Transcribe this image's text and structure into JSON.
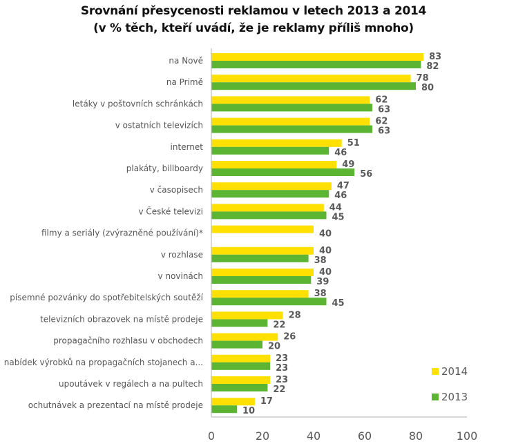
{
  "chart_data": {
    "type": "bar",
    "orientation": "horizontal",
    "title": "Srovnání přesycenosti reklamou v letech 2013 a 2014",
    "subtitle": "(v % těch, kteří uvádí, že je reklamy příliš mnoho)",
    "xlabel": "",
    "ylabel": "",
    "xlim": [
      0,
      100
    ],
    "xticks": [
      "0",
      "20",
      "40",
      "60",
      "80",
      "100"
    ],
    "grid": false,
    "legend_position": "bottom-right",
    "categories": [
      "na Nově",
      "na Primě",
      "letáky v poštovních  schránkách",
      "v ostatních televizích",
      "internet",
      "plakáty, billboardy",
      "v časopisech",
      "v České televizi",
      "filmy a seriály (zvýrazněné používání)*",
      "v rozhlase",
      "v novinách",
      "písemné  pozvánky do spotřebitelských soutěží",
      "televizních obrazovek na místě prodeje",
      "propagačního rozhlasu v obchodech",
      "nabídek výrobků na propagačních stojanech a...",
      "upoutávek v regálech a na pultech",
      "ochutnávek a prezentací na místě prodeje"
    ],
    "series": [
      {
        "name": "2014",
        "color": "#FFE000",
        "values": [
          83,
          78,
          62,
          62,
          51,
          49,
          47,
          44,
          40,
          40,
          40,
          38,
          28,
          26,
          23,
          23,
          17
        ]
      },
      {
        "name": "2013",
        "color": "#5BB432",
        "values": [
          82,
          80,
          63,
          63,
          46,
          56,
          46,
          45,
          null,
          38,
          39,
          45,
          22,
          20,
          23,
          22,
          10
        ]
      }
    ]
  }
}
